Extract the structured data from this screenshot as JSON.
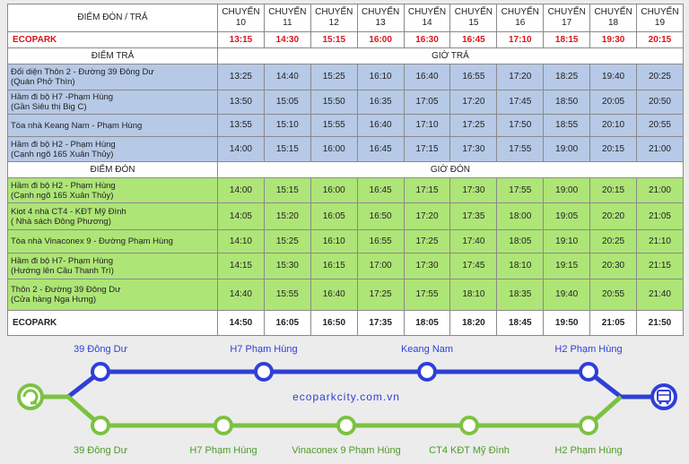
{
  "header": {
    "stop_col": "ĐIỂM ĐÓN / TRẢ",
    "trips": [
      {
        "label": "CHUYẾN",
        "num": "10"
      },
      {
        "label": "CHUYẾN",
        "num": "11"
      },
      {
        "label": "CHUYẾN",
        "num": "12"
      },
      {
        "label": "CHUYẾN",
        "num": "13"
      },
      {
        "label": "CHUYẾN",
        "num": "14"
      },
      {
        "label": "CHUYẾN",
        "num": "15"
      },
      {
        "label": "CHUYẾN",
        "num": "16"
      },
      {
        "label": "CHUYẾN",
        "num": "17"
      },
      {
        "label": "CHUYẾN",
        "num": "18"
      },
      {
        "label": "CHUYẾN",
        "num": "19"
      }
    ]
  },
  "depart_row": {
    "name": "ECOPARK",
    "times": [
      "13:15",
      "14:30",
      "15:15",
      "16:00",
      "16:30",
      "16:45",
      "17:10",
      "18:15",
      "19:30",
      "20:15"
    ]
  },
  "dropoff_section": {
    "stop_label": "ĐIỂM TRẢ",
    "time_label": "GIỜ TRẢ"
  },
  "dropoff_rows": [
    {
      "line1": "Đối diện Thôn 2 - Đường 39 Đông Dư",
      "line2": "(Quán Phở Thìn)",
      "times": [
        "13:25",
        "14:40",
        "15:25",
        "16:10",
        "16:40",
        "16:55",
        "17:20",
        "18:25",
        "19:40",
        "20:25"
      ]
    },
    {
      "line1": "Hầm đi bộ H7 -Phạm Hùng",
      "line2": "(Gần Siêu thị Big C)",
      "times": [
        "13:50",
        "15:05",
        "15:50",
        "16:35",
        "17:05",
        "17:20",
        "17:45",
        "18:50",
        "20:05",
        "20:50"
      ]
    },
    {
      "line1": "Tòa nhà Keang Nam - Phạm Hùng",
      "line2": "",
      "times": [
        "13:55",
        "15:10",
        "15:55",
        "16:40",
        "17:10",
        "17:25",
        "17:50",
        "18:55",
        "20:10",
        "20:55"
      ]
    },
    {
      "line1": "Hầm đi bộ H2 - Phạm Hùng",
      "line2": "(Cạnh ngõ 165 Xuân Thủy)",
      "times": [
        "14:00",
        "15:15",
        "16:00",
        "16:45",
        "17:15",
        "17:30",
        "17:55",
        "19:00",
        "20:15",
        "21:00"
      ]
    }
  ],
  "pickup_section": {
    "stop_label": "ĐIỂM ĐÓN",
    "time_label": "GIỜ ĐÓN"
  },
  "pickup_rows": [
    {
      "line1": "Hầm đi bộ H2 - Phạm Hùng",
      "line2": "(Cạnh ngõ 165 Xuân Thủy)",
      "times": [
        "14:00",
        "15:15",
        "16:00",
        "16:45",
        "17:15",
        "17:30",
        "17:55",
        "19:00",
        "20:15",
        "21:00"
      ]
    },
    {
      "line1": "Kiot 4 nhà CT4 - KĐT Mỹ Đình",
      "line2": "( Nhà sách Đông Phương)",
      "times": [
        "14:05",
        "15:20",
        "16:05",
        "16:50",
        "17:20",
        "17:35",
        "18:00",
        "19:05",
        "20:20",
        "21:05"
      ]
    },
    {
      "line1": "Tòa nhà Vinaconex 9 - Đường Phạm Hùng",
      "line2": "",
      "times": [
        "14:10",
        "15:25",
        "16:10",
        "16:55",
        "17:25",
        "17:40",
        "18:05",
        "19:10",
        "20:25",
        "21:10"
      ]
    },
    {
      "line1": "Hầm đi bộ H7- Phạm Hùng",
      "line2": "(Hướng lên Cầu Thanh Trì)",
      "times": [
        "14:15",
        "15:30",
        "16:15",
        "17:00",
        "17:30",
        "17:45",
        "18:10",
        "19:15",
        "20:30",
        "21:15"
      ]
    },
    {
      "line1": "Thôn 2 - Đường 39 Đông Dư",
      "line2": "(Cửa hàng Nga Hưng)",
      "times": [
        "14:40",
        "15:55",
        "16:40",
        "17:25",
        "17:55",
        "18:10",
        "18:35",
        "19:40",
        "20:55",
        "21:40"
      ]
    }
  ],
  "arrive_row": {
    "name": "ECOPARK",
    "times": [
      "14:50",
      "16:05",
      "16:50",
      "17:35",
      "18:05",
      "18:20",
      "18:45",
      "19:50",
      "21:05",
      "21:50"
    ]
  },
  "route_map": {
    "top_stops": [
      "39 Đông Dư",
      "H7 Phạm Hùng",
      "Keang Nam",
      "H2 Phạm Hùng"
    ],
    "bottom_stops": [
      "39 Đông Dư",
      "H7 Phạm Hùng",
      "Vinaconex 9 Phạm Hùng",
      "CT4 KĐT Mỹ Đình",
      "H2 Phạm Hùng"
    ],
    "website": "ecoparkcity.com.vn",
    "start_icon": "ecopark-logo-icon",
    "end_icon": "bus-icon",
    "colors": {
      "top_line": "#2f3fd6",
      "bottom_line": "#7cc242",
      "top_text": "#2f3fd6",
      "bottom_text": "#4e9a27",
      "red": "#d9141b",
      "blue_row": "#b6c9e6",
      "green_row": "#aee577"
    }
  }
}
